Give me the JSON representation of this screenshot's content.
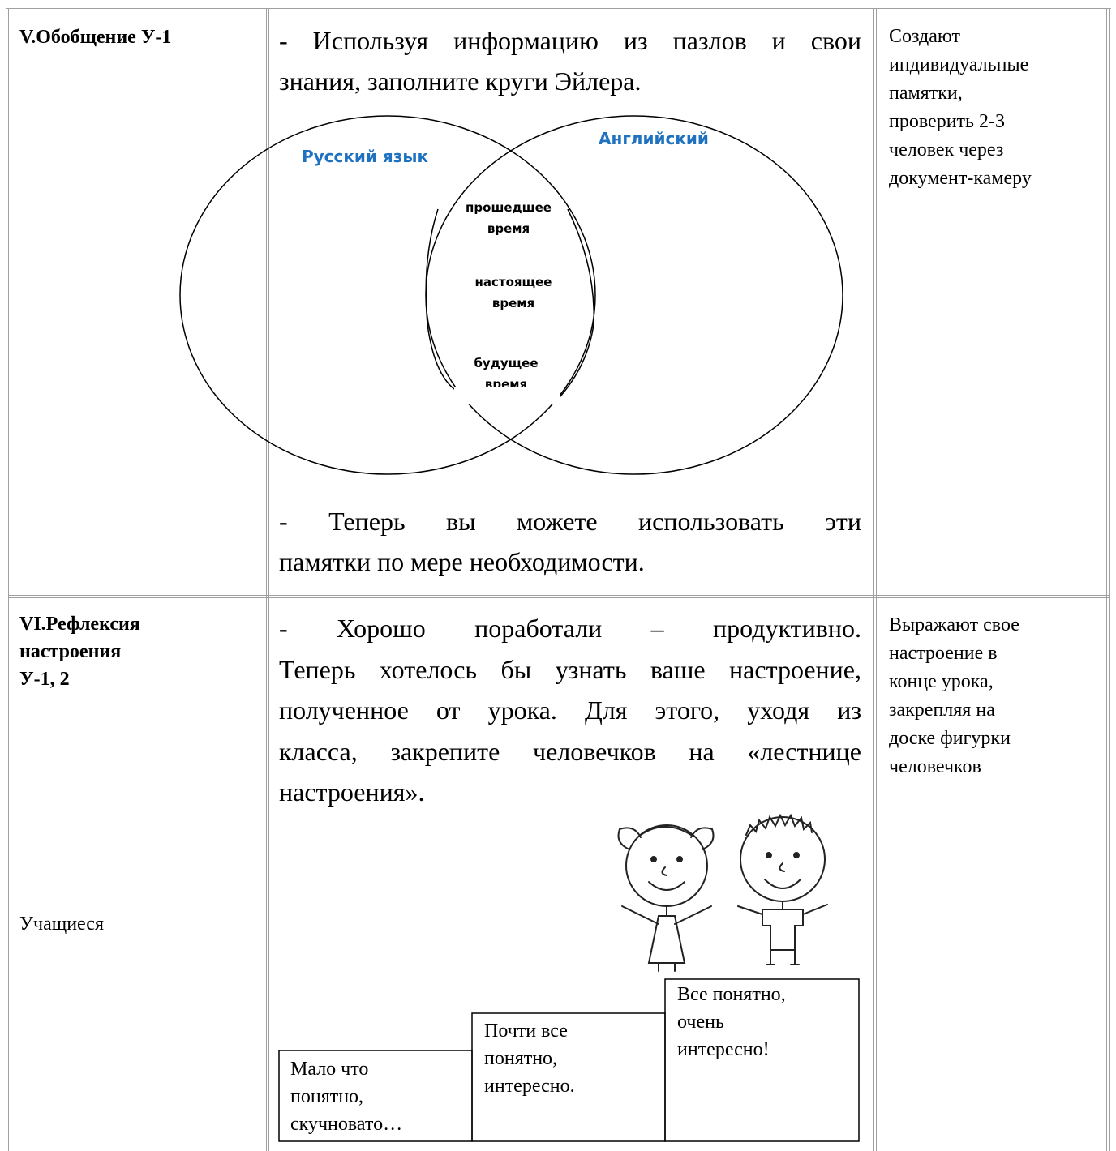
{
  "table": {
    "rows": [
      {
        "stage": [
          "V.Обобщение У-1"
        ],
        "teacher": {
          "intro": [
            "- Используя информацию из пазлов и свои",
            "знания, заполните круги Эйлера."
          ],
          "diagram": {
            "left": "Русский язык",
            "right": "Английский",
            "common": [
              [
                "прошедшее",
                "время"
              ],
              [
                "настоящее",
                "время"
              ],
              [
                "будущее",
                "время"
              ]
            ]
          },
          "outro": [
            "- Теперь вы можете использовать эти",
            "памятки по мере необходимости."
          ]
        },
        "students": [
          "Создают",
          "индивидуальные",
          "памятки,",
          "проверить 2-3",
          "человек через",
          "документ-камеру"
        ]
      },
      {
        "stage": [
          "VI.Рефлексия",
          "настроения",
          "У-1, 2"
        ],
        "note": "Учащиеся",
        "teacher": {
          "intro": [
            "- Хорошо поработали – продуктивно.",
            "Теперь хотелось бы узнать ваше настроение,",
            "полученное от урока. Для этого, уходя из",
            "класса, закрепите человечков на «лестнице",
            "настроения»."
          ],
          "steps": [
            [
              "Мало что",
              "понятно,",
              "скучновато…"
            ],
            [
              "Почти все",
              "понятно,",
              "интересно."
            ],
            [
              "Все понятно,",
              "очень",
              "интересно!"
            ]
          ]
        },
        "students": [
          "Выражают свое",
          "настроение в",
          "конце урока,",
          "закрепляя на",
          "доске фигурки",
          "человечков"
        ]
      }
    ]
  }
}
